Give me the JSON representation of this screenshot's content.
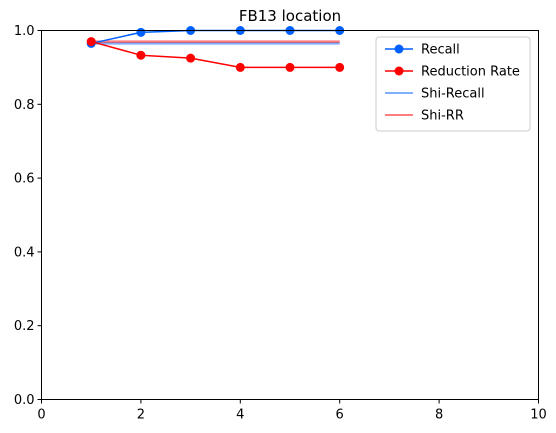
{
  "chart_data": {
    "type": "line",
    "title": "FB13 location",
    "xlabel": "",
    "ylabel": "",
    "xlim": [
      0,
      10
    ],
    "ylim": [
      0.0,
      1.0
    ],
    "xticks": [
      0,
      2,
      4,
      6,
      8,
      10
    ],
    "yticks": [
      0.0,
      0.2,
      0.4,
      0.6,
      0.8,
      1.0
    ],
    "xtick_labels": [
      "0",
      "2",
      "4",
      "6",
      "8",
      "10"
    ],
    "ytick_labels": [
      "0.0",
      "0.2",
      "0.4",
      "0.6",
      "0.8",
      "1.0"
    ],
    "grid": false,
    "legend_position": "top-right",
    "series": [
      {
        "name": "Recall",
        "color": "#0060ff",
        "marker": "circle",
        "opacity": 1.0,
        "x": [
          1,
          2,
          3,
          4,
          5,
          6
        ],
        "y": [
          0.965,
          0.995,
          1.0,
          1.0,
          1.0,
          1.0
        ]
      },
      {
        "name": "Reduction Rate",
        "color": "#ff0000",
        "marker": "circle",
        "opacity": 1.0,
        "x": [
          1,
          2,
          3,
          4,
          5,
          6
        ],
        "y": [
          0.97,
          0.933,
          0.925,
          0.9,
          0.9,
          0.9
        ]
      },
      {
        "name": "Shi-Recall",
        "color": "#0060ff",
        "marker": "none",
        "opacity": 0.5,
        "x": [
          1,
          6
        ],
        "y": [
          0.965,
          0.965
        ]
      },
      {
        "name": "Shi-RR",
        "color": "#ff0000",
        "marker": "none",
        "opacity": 0.5,
        "x": [
          1,
          6
        ],
        "y": [
          0.97,
          0.97
        ]
      }
    ]
  }
}
